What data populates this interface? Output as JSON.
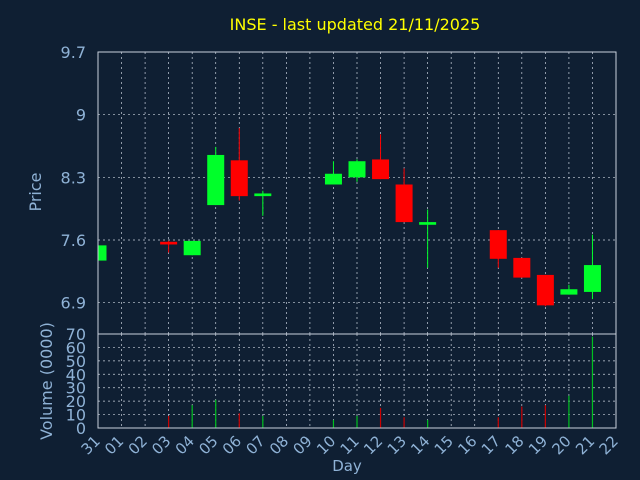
{
  "chart_data": {
    "type": "candlestick",
    "title": "INSE - last updated 21/11/2025",
    "xlabel": "Day",
    "price_panel": {
      "ylabel": "Price",
      "ylim": [
        6.55,
        9.7
      ],
      "yticks": [
        9.7,
        9,
        8.3,
        7.6,
        6.9
      ],
      "ytick_labels": [
        "9.7",
        "9",
        "8.3",
        "7.6",
        "6.9"
      ],
      "grid": true
    },
    "volume_panel": {
      "ylabel": "Volume (0000)",
      "ylim": [
        0,
        70
      ],
      "yticks": [
        0,
        10,
        20,
        30,
        40,
        50,
        60,
        70
      ],
      "ytick_labels": [
        "0",
        "10",
        "20",
        "30",
        "40",
        "50",
        "60",
        "70"
      ],
      "grid": true
    },
    "x_ticks": [
      "31",
      "01",
      "02",
      "03",
      "04",
      "05",
      "06",
      "07",
      "08",
      "09",
      "10",
      "11",
      "12",
      "13",
      "14",
      "15",
      "16",
      "17",
      "18",
      "19",
      "20",
      "21",
      "22"
    ],
    "candles": [
      {
        "day": "31",
        "open": 7.37,
        "close": 7.54,
        "high": 7.54,
        "low": 7.37,
        "volume": 0
      },
      {
        "day": "03",
        "open": 7.58,
        "close": 7.55,
        "high": 7.59,
        "low": 7.46,
        "volume": 9
      },
      {
        "day": "04",
        "open": 7.43,
        "close": 7.59,
        "high": 7.59,
        "low": 7.43,
        "volume": 17
      },
      {
        "day": "05",
        "open": 7.99,
        "close": 8.55,
        "high": 8.64,
        "low": 7.99,
        "volume": 21
      },
      {
        "day": "06",
        "open": 8.49,
        "close": 8.09,
        "high": 8.85,
        "low": 8.04,
        "volume": 11
      },
      {
        "day": "07",
        "open": 8.09,
        "close": 8.12,
        "high": 8.15,
        "low": 7.87,
        "volume": 9
      },
      {
        "day": "10",
        "open": 8.22,
        "close": 8.34,
        "high": 8.48,
        "low": 8.22,
        "volume": 6
      },
      {
        "day": "11",
        "open": 8.3,
        "close": 8.48,
        "high": 8.5,
        "low": 8.25,
        "volume": 9
      },
      {
        "day": "12",
        "open": 8.5,
        "close": 8.28,
        "high": 8.78,
        "low": 8.28,
        "volume": 15
      },
      {
        "day": "13",
        "open": 8.22,
        "close": 7.8,
        "high": 8.4,
        "low": 7.8,
        "volume": 8
      },
      {
        "day": "14",
        "open": 7.77,
        "close": 7.8,
        "high": 7.94,
        "low": 7.29,
        "volume": 6
      },
      {
        "day": "17",
        "open": 7.71,
        "close": 7.39,
        "high": 7.71,
        "low": 7.29,
        "volume": 8
      },
      {
        "day": "18",
        "open": 7.4,
        "close": 7.18,
        "high": 7.4,
        "low": 7.18,
        "volume": 16
      },
      {
        "day": "19",
        "open": 7.21,
        "close": 6.87,
        "high": 7.21,
        "low": 6.86,
        "volume": 17
      },
      {
        "day": "20",
        "open": 6.99,
        "close": 7.05,
        "high": 7.1,
        "low": 6.99,
        "volume": 24
      },
      {
        "day": "21",
        "open": 7.02,
        "close": 7.32,
        "high": 7.66,
        "low": 6.94,
        "volume": 68
      }
    ],
    "colors": {
      "background": "#0f1f33",
      "grid": "#c8d0dc",
      "axis_text": "#8fb2d6",
      "title": "#ffff00",
      "up": "#00ff2a",
      "down": "#ff0000",
      "volume_up": "#00c020",
      "volume_down": "#cc0000"
    }
  }
}
